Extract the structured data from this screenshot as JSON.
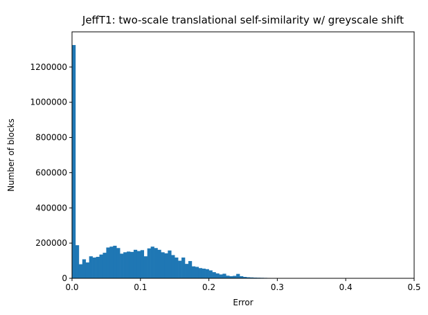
{
  "chart_data": {
    "type": "bar",
    "title": "JeffT1: two-scale translational self-similarity w/ greyscale shift",
    "xlabel": "Error",
    "ylabel": "Number of blocks",
    "xlim": [
      0,
      0.5
    ],
    "ylim": [
      0,
      1400000
    ],
    "xticks": [
      0,
      0.1,
      0.2,
      0.3,
      0.4,
      0.5
    ],
    "xtick_labels": [
      "0.0",
      "0.1",
      "0.2",
      "0.3",
      "0.4",
      "0.5"
    ],
    "yticks": [
      0,
      200000,
      400000,
      600000,
      800000,
      1000000,
      1200000
    ],
    "ytick_labels": [
      "0",
      "200000",
      "400000",
      "600000",
      "800000",
      "1000000",
      "1200000"
    ],
    "bin_width": 0.005,
    "bin_start": 0.0,
    "values": [
      1325000,
      188000,
      80000,
      108000,
      90000,
      125000,
      118000,
      122000,
      135000,
      145000,
      175000,
      180000,
      185000,
      172000,
      140000,
      148000,
      152000,
      150000,
      162000,
      155000,
      160000,
      125000,
      170000,
      180000,
      172000,
      162000,
      148000,
      142000,
      158000,
      132000,
      118000,
      100000,
      118000,
      82000,
      98000,
      68000,
      65000,
      58000,
      55000,
      52000,
      45000,
      35000,
      28000,
      22000,
      26000,
      15000,
      12000,
      14000,
      25000,
      12000,
      8000,
      6000,
      5000,
      4000,
      3500,
      3000,
      2500,
      2000,
      1500,
      1200,
      1000,
      900,
      800,
      700,
      600,
      500,
      400,
      300
    ],
    "bar_color": "#1f77b4",
    "grid": false,
    "legend": "none"
  }
}
